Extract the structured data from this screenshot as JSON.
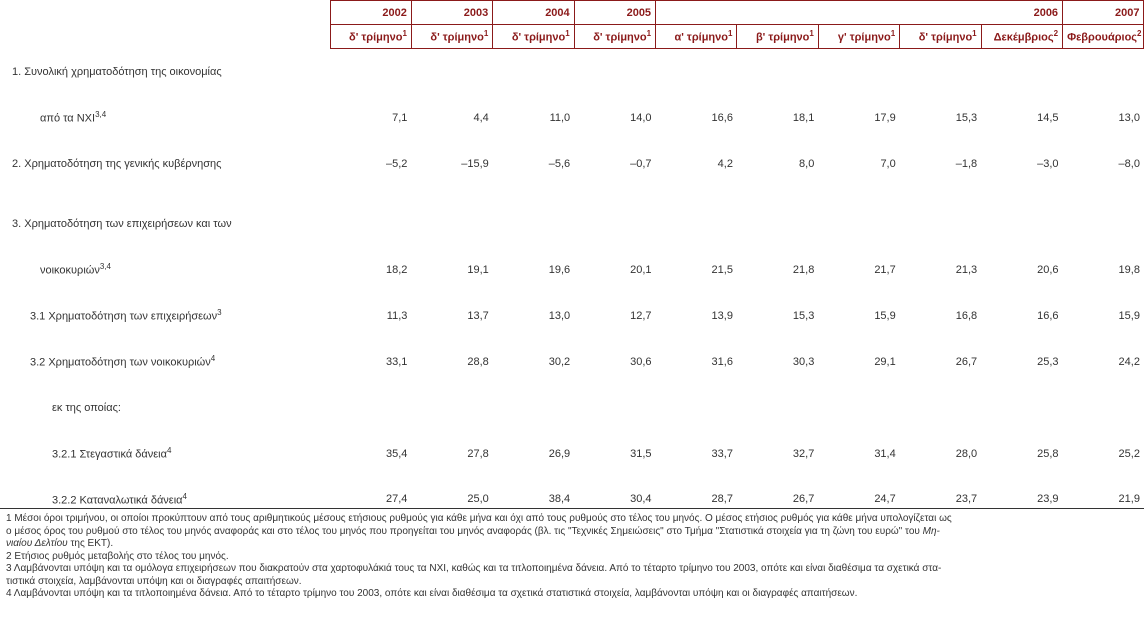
{
  "colors": {
    "header_text": "#8b1a1a",
    "header_border": "#8b1a1a",
    "body_text": "#333333",
    "rule": "#333333"
  },
  "years": {
    "y2002": "2002",
    "y2003": "2003",
    "y2004": "2004",
    "y2005": "2005",
    "y2006": "2006",
    "y2007": "2007"
  },
  "periods": {
    "q4_1": "δ' τρίμηνο",
    "q4_2": "δ' τρίμηνο",
    "q4_3": "δ' τρίμηνο",
    "q4_4": "δ' τρίμηνο",
    "q1": "α' τρίμηνο",
    "q2": "β' τρίμηνο",
    "q3": "γ' τρίμηνο",
    "q4_5": "δ' τρίμηνο",
    "dec": "Δεκέμβριος",
    "feb": "Φεβρουάριος"
  },
  "sup": {
    "s1": "1",
    "s2": "2",
    "s3": "3",
    "s4": "4",
    "s34": "3,4"
  },
  "rows": {
    "r1": {
      "label": "1. Συνολική χρηματοδότηση της οικονομίας"
    },
    "r1a": {
      "label": "από τα ΝΧΙ",
      "sup": "3,4",
      "v": [
        "7,1",
        "4,4",
        "11,0",
        "14,0",
        "16,6",
        "18,1",
        "17,9",
        "15,3",
        "14,5",
        "13,0"
      ]
    },
    "r2": {
      "label": "2. Χρηματοδότηση της γενικής κυβέρνησης",
      "v": [
        "–5,2",
        "–15,9",
        "–5,6",
        "–0,7",
        "4,2",
        "8,0",
        "7,0",
        "–1,8",
        "–3,0",
        "–8,0"
      ]
    },
    "r3": {
      "label": "3. Χρηματοδότηση των επιχειρήσεων και των"
    },
    "r3a": {
      "label": "νοικοκυριών",
      "sup": "3,4",
      "v": [
        "18,2",
        "19,1",
        "19,6",
        "20,1",
        "21,5",
        "21,8",
        "21,7",
        "21,3",
        "20,6",
        "19,8"
      ]
    },
    "r31": {
      "label": "3.1 Χρηματοδότηση των επιχειρήσεων",
      "sup": "3",
      "v": [
        "11,3",
        "13,7",
        "13,0",
        "12,7",
        "13,9",
        "15,3",
        "15,9",
        "16,8",
        "16,6",
        "15,9"
      ]
    },
    "r32": {
      "label": "3.2  Χρηματοδότηση των νοικοκυριών",
      "sup": "4",
      "v": [
        "33,1",
        "28,8",
        "30,2",
        "30,6",
        "31,6",
        "30,3",
        "29,1",
        "26,7",
        "25,3",
        "24,2"
      ]
    },
    "rek": {
      "label": "εκ της οποίας:"
    },
    "r321": {
      "label": "3.2.1 Στεγαστικά δάνεια",
      "sup": "4",
      "v": [
        "35,4",
        "27,8",
        "26,9",
        "31,5",
        "33,7",
        "32,7",
        "31,4",
        "28,0",
        "25,8",
        "25,2"
      ]
    },
    "r322": {
      "label": "3.2.2 Καταναλωτικά δάνεια",
      "sup": "4",
      "v": [
        "27,4",
        "25,0",
        "38,4",
        "30,4",
        "28,7",
        "26,7",
        "24,7",
        "23,7",
        "23,9",
        "21,9"
      ]
    }
  },
  "indents": {
    "r1": 0,
    "r1a": 28,
    "r2": 0,
    "r3": 0,
    "r3a": 28,
    "r31": 18,
    "r32": 18,
    "rek": 40,
    "r321": 40,
    "r322": 40
  },
  "footnotes": {
    "n1a": "1 Μέσοι όροι τριμήνου, οι οποίοι προκύπτουν από τους αριθμητικούς μέσους ετήσιους ρυθμούς για κάθε μήνα και όχι από τους ρυθμούς στο τέλος του μηνός. Ο μέσος ετήσιος ρυθμός για κάθε μήνα υπολογίζεται ως",
    "n1b": "ο μέσος όρος του ρυθμού στο τέλος του μηνός αναφοράς και στο τέλος του μηνός που προηγείται του μηνός αναφοράς (βλ. τις \"Τεχνικές Σημειώσεις\" στο Τμήμα \"Στατιστικά στοιχεία για τη ζώνη του ευρώ\" του Μη-",
    "n1c": "νιαίου Δελτίου της ΕΚΤ).",
    "n2": "2 Ετήσιος ρυθμός μεταβολής στο τέλος του μηνός.",
    "n3a": "3 Λαμβάνονται υπόψη και τα ομόλογα επιχειρήσεων που διακρατούν στα χαρτοφυλάκιά τους τα ΝΧΙ, καθώς και τα τιτλοποιημένα δάνεια. Από το τέταρτο τρίμηνο του 2003, οπότε και είναι διαθέσιμα τα σχετικά στα-",
    "n3b": "τιστικά στοιχεία, λαμβάνονται υπόψη και οι  διαγραφές απαιτήσεων.",
    "n4": "4 Λαμβάνονται υπόψη και τα τιτλοποιημένα δάνεια. Από το τέταρτο τρίμηνο του 2003, οπότε και είναι διαθέσιμα τα σχετικά στατιστικά στοιχεία, λαμβάνονται υπόψη και οι  διαγραφές απαιτήσεων."
  }
}
